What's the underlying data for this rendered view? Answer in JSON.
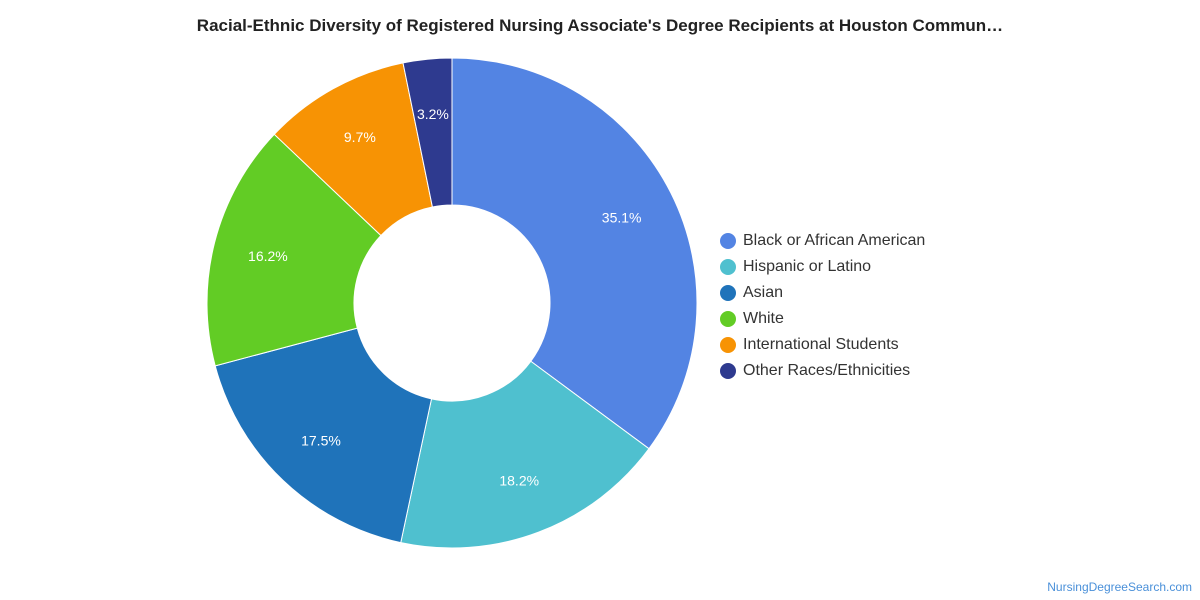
{
  "chart_data": {
    "type": "pie",
    "title": "Racial-Ethnic Diversity of Registered Nursing Associate's Degree Recipients at Houston Commun…",
    "donut": true,
    "legend_position": "right",
    "slices": [
      {
        "label": "Black or African American",
        "value": 35.1,
        "value_label": "35.1%",
        "color": "#5384e3"
      },
      {
        "label": "Hispanic or Latino",
        "value": 18.2,
        "value_label": "18.2%",
        "color": "#4fc0cf"
      },
      {
        "label": "Asian",
        "value": 17.5,
        "value_label": "17.5%",
        "color": "#1f73ba"
      },
      {
        "label": "White",
        "value": 16.2,
        "value_label": "16.2%",
        "color": "#62cc25"
      },
      {
        "label": "International Students",
        "value": 9.7,
        "value_label": "9.7%",
        "color": "#f79304"
      },
      {
        "label": "Other Races/Ethnicities",
        "value": 3.2,
        "value_label": "3.2%",
        "color": "#2e3a8f"
      }
    ]
  },
  "source": {
    "label": "NursingDegreeSearch.com"
  }
}
